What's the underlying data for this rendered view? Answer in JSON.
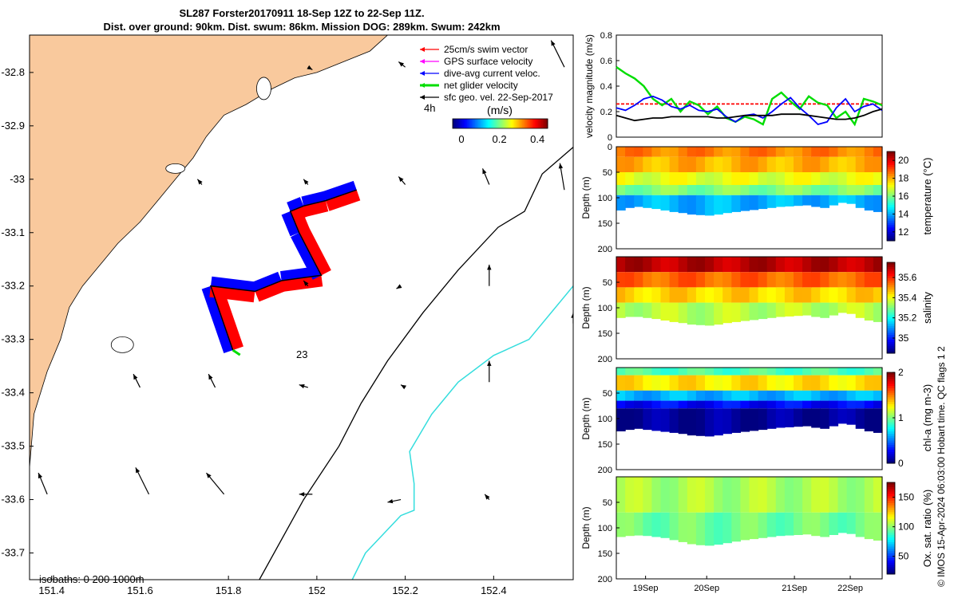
{
  "title": {
    "line1": "SL287 Forster20170911 18-Sep 12Z to 22-Sep 11Z.",
    "line2": "Dist. over ground: 90km. Dist. swum: 86km. Mission DOG: 289km. Swum: 242km"
  },
  "colors": {
    "land": "#f9c99d",
    "swim": "#ff0000",
    "current": "#0000ff",
    "net": "#00dd00",
    "gps": "#ff00ff",
    "geo": "#000000",
    "iso1000": "#33dddd"
  },
  "chart_data": [
    {
      "type": "map",
      "id": "track-map",
      "xlim": [
        151.35,
        152.58
      ],
      "ylim": [
        -33.75,
        -32.73
      ],
      "xticks": [
        151.4,
        151.6,
        151.8,
        152,
        152.2,
        152.4
      ],
      "xtick_labels": [
        "151.4",
        "151.6",
        "151.8",
        "152",
        "152.2",
        "152.4"
      ],
      "yticks": [
        -32.8,
        -32.9,
        -33,
        -33.1,
        -33.2,
        -33.3,
        -33.4,
        -33.5,
        -33.6,
        -33.7
      ],
      "ytick_labels": [
        "-32.8",
        "-32.9",
        "-33",
        "-33.1",
        "-33.2",
        "-33.3",
        "-33.4",
        "-33.5",
        "-33.6",
        "-33.7"
      ],
      "legend": [
        {
          "label": "25cm/s swim vector",
          "color": "#ff0000"
        },
        {
          "label": "GPS surface velocity",
          "color": "#ff00ff"
        },
        {
          "label": "dive-avg current veloc.",
          "color": "#0000ff"
        },
        {
          "label": "net glider velocity",
          "color": "#00dd00"
        },
        {
          "label": "sfc geo. vel. 22-Sep-2017",
          "color": "#000000"
        }
      ],
      "legend_note": "4h",
      "colorbar": {
        "label": "(m/s)",
        "ticks": [
          0,
          0.2,
          0.4
        ],
        "tick_labels": [
          "0",
          "0.2",
          "0.4"
        ],
        "range": [
          0,
          0.5
        ]
      },
      "isobath_label": "isobaths: 0   200  1000m",
      "track_label": "23",
      "coast": [
        [
          151.35,
          -33.54
        ],
        [
          151.36,
          -33.44
        ],
        [
          151.39,
          -33.36
        ],
        [
          151.42,
          -33.3
        ],
        [
          151.44,
          -33.24
        ],
        [
          151.47,
          -33.2
        ],
        [
          151.51,
          -33.16
        ],
        [
          151.55,
          -33.12
        ],
        [
          151.6,
          -33.08
        ],
        [
          151.64,
          -33.04
        ],
        [
          151.68,
          -33.0
        ],
        [
          151.72,
          -32.96
        ],
        [
          151.75,
          -32.92
        ],
        [
          151.79,
          -32.88
        ],
        [
          151.84,
          -32.86
        ],
        [
          151.9,
          -32.83
        ],
        [
          151.95,
          -32.81
        ],
        [
          152.0,
          -32.8
        ],
        [
          152.06,
          -32.78
        ],
        [
          152.12,
          -32.76
        ],
        [
          152.16,
          -32.73
        ]
      ],
      "iso200": [
        [
          151.87,
          -33.75
        ],
        [
          151.97,
          -33.6
        ],
        [
          152.05,
          -33.5
        ],
        [
          152.1,
          -33.42
        ],
        [
          152.16,
          -33.34
        ],
        [
          152.24,
          -33.25
        ],
        [
          152.32,
          -33.17
        ],
        [
          152.41,
          -33.09
        ],
        [
          152.47,
          -33.06
        ],
        [
          152.51,
          -32.99
        ],
        [
          152.58,
          -32.94
        ]
      ],
      "iso1000": [
        [
          152.08,
          -33.75
        ],
        [
          152.11,
          -33.7
        ],
        [
          152.19,
          -33.63
        ],
        [
          152.22,
          -33.62
        ],
        [
          152.22,
          -33.57
        ],
        [
          152.21,
          -33.51
        ],
        [
          152.26,
          -33.44
        ],
        [
          152.32,
          -33.38
        ],
        [
          152.4,
          -33.33
        ],
        [
          152.48,
          -33.3
        ],
        [
          152.55,
          -33.23
        ],
        [
          152.58,
          -33.2
        ]
      ],
      "track": [
        [
          151.81,
          -33.32
        ],
        [
          151.76,
          -33.2
        ],
        [
          151.86,
          -33.21
        ],
        [
          151.92,
          -33.19
        ],
        [
          152.01,
          -33.18
        ],
        [
          151.96,
          -33.1
        ],
        [
          151.94,
          -33.06
        ],
        [
          151.97,
          -33.05
        ],
        [
          152.02,
          -33.04
        ],
        [
          152.09,
          -33.02
        ]
      ],
      "geo_arrows": [
        [
          151.72,
          -32.76,
          0.0,
          0.0
        ],
        [
          151.98,
          -32.79,
          0.01,
          -0.005
        ],
        [
          152.2,
          -32.79,
          -0.015,
          0.01
        ],
        [
          152.56,
          -32.79,
          -0.03,
          0.05
        ],
        [
          151.56,
          -33.0,
          0.0,
          0.0
        ],
        [
          151.74,
          -33.01,
          -0.01,
          0.01
        ],
        [
          151.98,
          -33.01,
          -0.01,
          0.01
        ],
        [
          152.2,
          -33.01,
          -0.015,
          0.015
        ],
        [
          152.39,
          -33.01,
          -0.015,
          0.03
        ],
        [
          152.56,
          -33.02,
          -0.01,
          0.05
        ],
        [
          151.98,
          -33.2,
          -0.01,
          0.01
        ],
        [
          152.19,
          -33.2,
          -0.01,
          -0.005
        ],
        [
          152.39,
          -33.2,
          0.0,
          0.04
        ],
        [
          152.58,
          -33.27,
          0.0,
          0.02
        ],
        [
          151.6,
          -33.39,
          -0.015,
          0.025
        ],
        [
          151.77,
          -33.39,
          -0.015,
          0.025
        ],
        [
          151.98,
          -33.39,
          -0.02,
          0.005
        ],
        [
          152.2,
          -33.39,
          -0.01,
          0.005
        ],
        [
          152.39,
          -33.38,
          0.0,
          0.04
        ],
        [
          151.39,
          -33.59,
          -0.02,
          0.04
        ],
        [
          151.62,
          -33.59,
          -0.03,
          0.05
        ],
        [
          151.79,
          -33.59,
          -0.04,
          0.04
        ],
        [
          151.99,
          -33.59,
          -0.03,
          0.0
        ],
        [
          152.19,
          -33.6,
          -0.03,
          -0.005
        ],
        [
          152.39,
          -33.6,
          -0.01,
          0.01
        ]
      ]
    },
    {
      "type": "line",
      "id": "velocity-panel",
      "ylabel": "velocity magnitude (m/s)",
      "ylim": [
        0,
        0.8
      ],
      "yticks": [
        0,
        0.2,
        0.4,
        0.6,
        0.8
      ],
      "ytick_labels": [
        "0",
        "0.2",
        "0.4",
        "0.6",
        "0.8"
      ],
      "series": [
        {
          "name": "swim",
          "color": "#ff0000",
          "values": [
            0.26,
            0.26,
            0.26,
            0.26,
            0.26,
            0.26,
            0.26,
            0.26,
            0.26,
            0.26,
            0.26,
            0.26,
            0.26,
            0.26,
            0.26,
            0.26,
            0.26,
            0.26,
            0.26,
            0.26,
            0.26,
            0.26,
            0.26,
            0.26,
            0.26,
            0.26,
            0.26,
            0.26,
            0.26,
            0.26
          ]
        },
        {
          "name": "net",
          "color": "#00dd00",
          "values": [
            0.55,
            0.5,
            0.46,
            0.4,
            0.3,
            0.25,
            0.3,
            0.2,
            0.28,
            0.25,
            0.18,
            0.24,
            0.15,
            0.12,
            0.16,
            0.14,
            0.1,
            0.3,
            0.35,
            0.28,
            0.22,
            0.32,
            0.27,
            0.25,
            0.15,
            0.2,
            0.1,
            0.3,
            0.28,
            0.25
          ]
        },
        {
          "name": "current",
          "color": "#0000ff",
          "values": [
            0.23,
            0.21,
            0.25,
            0.3,
            0.32,
            0.29,
            0.24,
            0.22,
            0.25,
            0.21,
            0.2,
            0.22,
            0.16,
            0.12,
            0.17,
            0.18,
            0.15,
            0.2,
            0.26,
            0.31,
            0.23,
            0.17,
            0.1,
            0.12,
            0.23,
            0.3,
            0.2,
            0.24,
            0.26,
            0.21
          ]
        },
        {
          "name": "geo",
          "color": "#000000",
          "values": [
            0.17,
            0.15,
            0.13,
            0.14,
            0.15,
            0.15,
            0.16,
            0.16,
            0.16,
            0.16,
            0.16,
            0.15,
            0.15,
            0.16,
            0.17,
            0.17,
            0.17,
            0.17,
            0.18,
            0.18,
            0.18,
            0.17,
            0.16,
            0.15,
            0.14,
            0.14,
            0.15,
            0.17,
            0.2,
            0.22
          ]
        }
      ]
    },
    {
      "type": "heatmap",
      "id": "temperature-panel",
      "ylabel": "Depth (m)",
      "yticks": [
        0,
        50,
        100,
        150,
        200
      ],
      "ytick_labels": [
        "0",
        "50",
        "100",
        "150",
        "200"
      ],
      "cbar_label": "temperature (°C)",
      "cbar_range": [
        11,
        21
      ],
      "cbar_ticks": [
        12,
        14,
        16,
        18,
        20
      ],
      "cbar_tick_labels": [
        "12",
        "14",
        "16",
        "18",
        "20"
      ],
      "bottom_depth": [
        125,
        120,
        118,
        120,
        122,
        125,
        128,
        130,
        133,
        134,
        135,
        133,
        130,
        128,
        126,
        124,
        122,
        120,
        118,
        117,
        116,
        115,
        118,
        120,
        115,
        110,
        112,
        120,
        125,
        128
      ],
      "layers": [
        [
          20,
          18.5
        ],
        [
          50,
          18
        ],
        [
          75,
          17
        ],
        [
          95,
          16
        ],
        [
          125,
          14
        ]
      ]
    },
    {
      "type": "heatmap",
      "id": "salinity-panel",
      "ylabel": "Depth (m)",
      "yticks": [
        0,
        50,
        100,
        150,
        200
      ],
      "ytick_labels": [
        "",
        "50",
        "100",
        "150",
        "200"
      ],
      "cbar_label": "salinity",
      "cbar_range": [
        34.85,
        35.75
      ],
      "cbar_ticks": [
        35,
        35.2,
        35.4,
        35.6
      ],
      "cbar_tick_labels": [
        "35",
        "35.2",
        "35.4",
        "35.6"
      ],
      "bottom_depth": [
        120,
        118,
        118,
        120,
        122,
        125,
        128,
        130,
        133,
        134,
        135,
        133,
        130,
        128,
        126,
        124,
        122,
        120,
        118,
        117,
        116,
        115,
        118,
        120,
        115,
        110,
        112,
        120,
        125,
        128
      ],
      "layers": [
        [
          30,
          35.7
        ],
        [
          60,
          35.55
        ],
        [
          90,
          35.45
        ],
        [
          130,
          35.35
        ]
      ]
    },
    {
      "type": "heatmap",
      "id": "chla-panel",
      "ylabel": "Depth (m)",
      "yticks": [
        0,
        50,
        100,
        150,
        200
      ],
      "ytick_labels": [
        "",
        "50",
        "100",
        "150",
        "200"
      ],
      "cbar_label": "chl-a (mg m-3)",
      "cbar_range": [
        0,
        2
      ],
      "cbar_ticks": [
        0,
        1,
        2
      ],
      "cbar_tick_labels": [
        "0",
        "1",
        "2"
      ],
      "bottom_depth": [
        125,
        122,
        120,
        122,
        124,
        126,
        128,
        130,
        133,
        134,
        135,
        133,
        130,
        128,
        126,
        124,
        122,
        120,
        118,
        117,
        116,
        115,
        118,
        120,
        115,
        110,
        112,
        120,
        125,
        128
      ],
      "layers": [
        [
          15,
          0.9
        ],
        [
          45,
          1.3
        ],
        [
          65,
          0.6
        ],
        [
          80,
          0.25
        ],
        [
          130,
          0.05
        ]
      ]
    },
    {
      "type": "heatmap",
      "id": "oxygen-panel",
      "ylabel": "Depth (m)",
      "yticks": [
        0,
        50,
        100,
        150,
        200
      ],
      "ytick_labels": [
        "",
        "50",
        "100",
        "150",
        "200"
      ],
      "cbar_label": "Ox. sat. ratio (%)",
      "cbar_range": [
        20,
        175
      ],
      "cbar_ticks": [
        50,
        100,
        150
      ],
      "cbar_tick_labels": [
        "50",
        "100",
        "150"
      ],
      "bottom_depth": [
        118,
        116,
        115,
        116,
        118,
        120,
        124,
        128,
        132,
        134,
        135,
        133,
        130,
        127,
        124,
        122,
        120,
        118,
        116,
        115,
        114,
        113,
        116,
        118,
        114,
        110,
        112,
        118,
        122,
        125
      ],
      "layers": [
        [
          70,
          104
        ],
        [
          130,
          95
        ]
      ],
      "xticks": [
        "19Sep",
        "20Sep",
        "21Sep",
        "22Sep"
      ]
    }
  ],
  "side_note": "© IMOS 15-Apr-2024 06:03:00 Hobart time. QC flags 1  2"
}
